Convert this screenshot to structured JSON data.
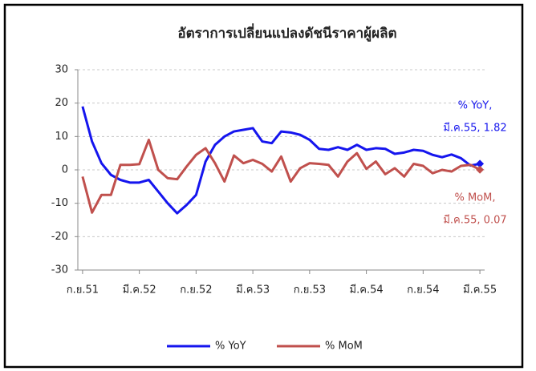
{
  "chart_data": {
    "type": "line",
    "title": "อัตราการเปลี่ยนแปลงดัชนีราคาผู้ผลิต",
    "categories": [
      "ก.ย.51",
      null,
      null,
      null,
      null,
      null,
      "มี.ค.52",
      null,
      null,
      null,
      null,
      null,
      "ก.ย.52",
      null,
      null,
      null,
      null,
      null,
      "มี.ค.53",
      null,
      null,
      null,
      null,
      null,
      "ก.ย.53",
      null,
      null,
      null,
      null,
      null,
      "มี.ค.54",
      null,
      null,
      null,
      null,
      null,
      "ก.ย.54",
      null,
      null,
      null,
      null,
      null,
      "มี.ค.55"
    ],
    "series": [
      {
        "name": "% YoY",
        "color": "#1515ee",
        "values": [
          19,
          8.5,
          2,
          -1.5,
          -3,
          -3.8,
          -3.8,
          -3,
          -6.5,
          -10,
          -13,
          -10.5,
          -7.5,
          2.5,
          7.5,
          10,
          11.5,
          12,
          12.5,
          8.5,
          8,
          11.5,
          11.2,
          10.5,
          9,
          6.3,
          6,
          6.8,
          6,
          7.5,
          6,
          6.5,
          6.3,
          4.8,
          5.2,
          6,
          5.7,
          4.5,
          3.8,
          4.6,
          3.5,
          1.3,
          1.82
        ]
      },
      {
        "name": "% MoM",
        "color": "#c0504d",
        "values": [
          -2,
          -12.8,
          -7.5,
          -7.5,
          1.5,
          1.5,
          1.7,
          9,
          0,
          -2.5,
          -2.8,
          1,
          4.5,
          6.5,
          2,
          -3.5,
          4.3,
          2,
          3,
          1.8,
          -0.5,
          4,
          -3.5,
          0.5,
          2,
          1.8,
          1.5,
          -2,
          2.5,
          5,
          0.3,
          2.5,
          -1.3,
          0.5,
          -2,
          1.8,
          1.2,
          -1,
          0,
          -0.5,
          1.2,
          1.5,
          0.07
        ]
      }
    ],
    "annotations": [
      {
        "series": 0,
        "lines": [
          "% YoY,",
          "มี.ค.55, 1.82"
        ]
      },
      {
        "series": 1,
        "lines": [
          "% MoM,",
          "มี.ค.55, 0.07"
        ]
      }
    ],
    "ylim": [
      -30,
      30
    ],
    "yticks": [
      -30,
      -20,
      -10,
      0,
      10,
      20,
      30
    ],
    "grid": true,
    "legend": "bottom"
  }
}
